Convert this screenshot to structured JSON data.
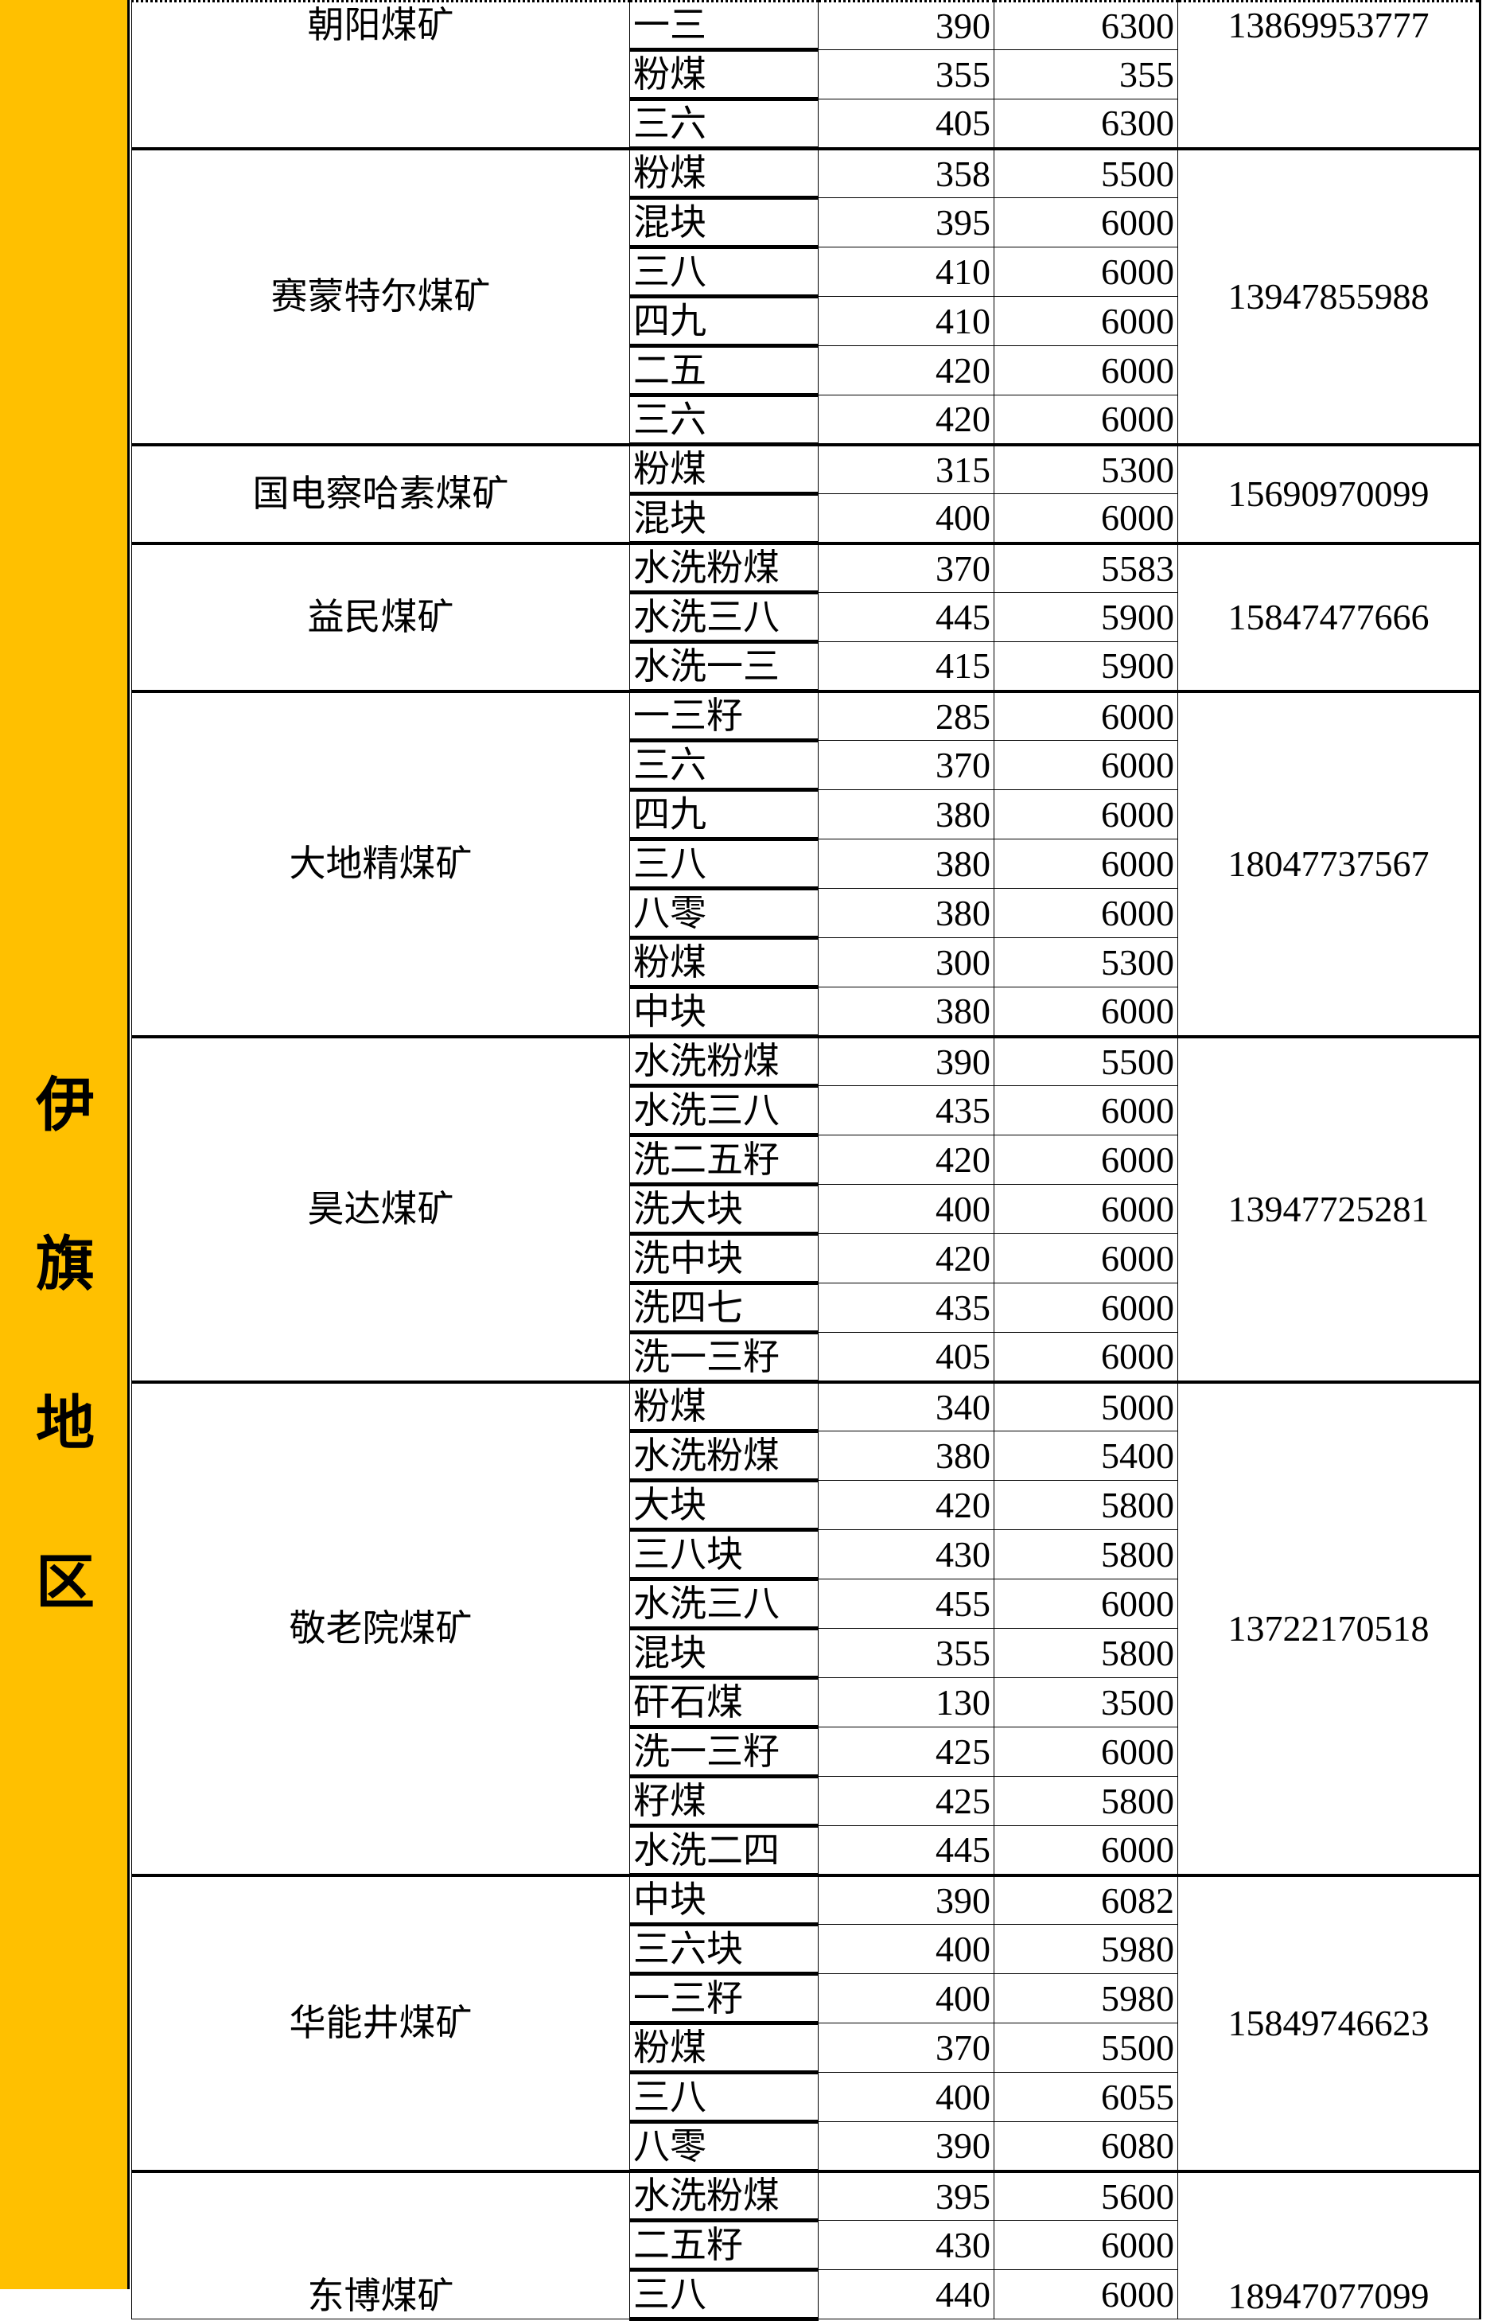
{
  "region": {
    "label": "伊旗地区",
    "color": "#FFC000"
  },
  "mines": [
    {
      "name": "朝阳煤矿",
      "phone": "13869953777",
      "rows": [
        [
          "一三",
          "390",
          "6300"
        ],
        [
          "粉煤",
          "355",
          "355"
        ],
        [
          "三六",
          "405",
          "6300"
        ]
      ]
    },
    {
      "name": "赛蒙特尔煤矿",
      "phone": "13947855988",
      "rows": [
        [
          "粉煤",
          "358",
          "5500"
        ],
        [
          "混块",
          "395",
          "6000"
        ],
        [
          "三八",
          "410",
          "6000"
        ],
        [
          "四九",
          "410",
          "6000"
        ],
        [
          "二五",
          "420",
          "6000"
        ],
        [
          "三六",
          "420",
          "6000"
        ]
      ]
    },
    {
      "name": "国电察哈素煤矿",
      "phone": "15690970099",
      "rows": [
        [
          "粉煤",
          "315",
          "5300"
        ],
        [
          "混块",
          "400",
          "6000"
        ]
      ]
    },
    {
      "name": "益民煤矿",
      "phone": "15847477666",
      "rows": [
        [
          "水洗粉煤",
          "370",
          "5583"
        ],
        [
          "水洗三八",
          "445",
          "5900"
        ],
        [
          "水洗一三",
          "415",
          "5900"
        ]
      ]
    },
    {
      "name": "大地精煤矿",
      "phone": "18047737567",
      "rows": [
        [
          "一三籽",
          "285",
          "6000"
        ],
        [
          "三六",
          "370",
          "6000"
        ],
        [
          "四九",
          "380",
          "6000"
        ],
        [
          "三八",
          "380",
          "6000"
        ],
        [
          "八零",
          "380",
          "6000"
        ],
        [
          "粉煤",
          "300",
          "5300"
        ],
        [
          "中块",
          "380",
          "6000"
        ]
      ]
    },
    {
      "name": "昊达煤矿",
      "phone": "13947725281",
      "rows": [
        [
          "水洗粉煤",
          "390",
          "5500"
        ],
        [
          "水洗三八",
          "435",
          "6000"
        ],
        [
          "洗二五籽",
          "420",
          "6000"
        ],
        [
          "洗大块",
          "400",
          "6000"
        ],
        [
          "洗中块",
          "420",
          "6000"
        ],
        [
          "洗四七",
          "435",
          "6000"
        ],
        [
          "洗一三籽",
          "405",
          "6000"
        ]
      ]
    },
    {
      "name": "敬老院煤矿",
      "phone": "13722170518",
      "rows": [
        [
          "粉煤",
          "340",
          "5000"
        ],
        [
          "水洗粉煤",
          "380",
          "5400"
        ],
        [
          "大块",
          "420",
          "5800"
        ],
        [
          "三八块",
          "430",
          "5800"
        ],
        [
          "水洗三八",
          "455",
          "6000"
        ],
        [
          "混块",
          "355",
          "5800"
        ],
        [
          "矸石煤",
          "130",
          "3500"
        ],
        [
          "洗一三籽",
          "425",
          "6000"
        ],
        [
          "籽煤",
          "425",
          "5800"
        ],
        [
          "水洗二四",
          "445",
          "6000"
        ]
      ]
    },
    {
      "name": "华能井煤矿",
      "phone": "15849746623",
      "rows": [
        [
          "中块",
          "390",
          "6082"
        ],
        [
          "三六块",
          "400",
          "5980"
        ],
        [
          "一三籽",
          "400",
          "5980"
        ],
        [
          "粉煤",
          "370",
          "5500"
        ],
        [
          "三八",
          "400",
          "6055"
        ],
        [
          "八零",
          "390",
          "6080"
        ]
      ]
    },
    {
      "name": "东博煤矿",
      "phone": "18947077099",
      "rows": [
        [
          "水洗粉煤",
          "395",
          "5600"
        ],
        [
          "二五籽",
          "430",
          "6000"
        ],
        [
          "三八",
          "440",
          "6000"
        ]
      ]
    }
  ]
}
